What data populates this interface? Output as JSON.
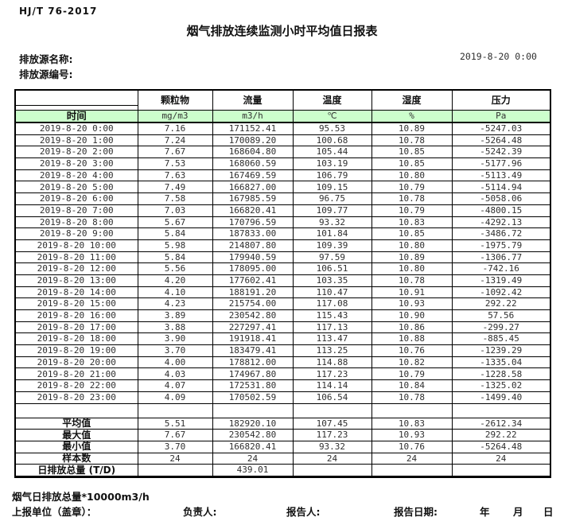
{
  "page": {
    "standard": "HJ/T  76-2017",
    "title": "烟气排放连续监测小时平均值日报表",
    "source_name_label": "排放源名称:",
    "source_id_label": "排放源编号:",
    "report_datetime": "2019-8-20 0:00"
  },
  "table": {
    "time_header": "时间",
    "param_headers": [
      "颗粒物",
      "流量",
      "温度",
      "湿度",
      "压力"
    ],
    "unit_headers": [
      "mg/m3",
      "m3/h",
      "℃",
      "%",
      "Pa"
    ],
    "hourly_rows": [
      {
        "time": "2019-8-20 0:00",
        "values": [
          "7.16",
          "171152.41",
          "95.53",
          "10.89",
          "-5247.03"
        ]
      },
      {
        "time": "2019-8-20 1:00",
        "values": [
          "7.24",
          "170089.20",
          "100.68",
          "10.78",
          "-5264.48"
        ]
      },
      {
        "time": "2019-8-20 2:00",
        "values": [
          "7.67",
          "168604.80",
          "105.44",
          "10.85",
          "-5242.39"
        ]
      },
      {
        "time": "2019-8-20 3:00",
        "values": [
          "7.53",
          "168060.59",
          "103.19",
          "10.85",
          "-5177.96"
        ]
      },
      {
        "time": "2019-8-20 4:00",
        "values": [
          "7.63",
          "167469.59",
          "106.79",
          "10.80",
          "-5113.49"
        ]
      },
      {
        "time": "2019-8-20 5:00",
        "values": [
          "7.49",
          "166827.00",
          "109.15",
          "10.79",
          "-5114.94"
        ]
      },
      {
        "time": "2019-8-20 6:00",
        "values": [
          "7.58",
          "167985.59",
          "96.75",
          "10.78",
          "-5058.06"
        ]
      },
      {
        "time": "2019-8-20 7:00",
        "values": [
          "7.03",
          "166820.41",
          "109.77",
          "10.79",
          "-4800.15"
        ]
      },
      {
        "time": "2019-8-20 8:00",
        "values": [
          "5.67",
          "170796.59",
          "93.32",
          "10.83",
          "-4292.13"
        ]
      },
      {
        "time": "2019-8-20 9:00",
        "values": [
          "5.84",
          "187833.00",
          "101.84",
          "10.85",
          "-3486.72"
        ]
      },
      {
        "time": "2019-8-20 10:00",
        "values": [
          "5.98",
          "214807.80",
          "109.39",
          "10.80",
          "-1975.79"
        ]
      },
      {
        "time": "2019-8-20 11:00",
        "values": [
          "5.84",
          "179940.59",
          "97.59",
          "10.89",
          "-1306.77"
        ]
      },
      {
        "time": "2019-8-20 12:00",
        "values": [
          "5.56",
          "178095.00",
          "106.51",
          "10.80",
          "-742.16"
        ]
      },
      {
        "time": "2019-8-20 13:00",
        "values": [
          "4.20",
          "177602.41",
          "103.35",
          "10.78",
          "-1319.49"
        ]
      },
      {
        "time": "2019-8-20 14:00",
        "values": [
          "4.10",
          "188191.20",
          "110.47",
          "10.91",
          "-1092.42"
        ]
      },
      {
        "time": "2019-8-20 15:00",
        "values": [
          "4.23",
          "215754.00",
          "117.08",
          "10.93",
          "292.22"
        ]
      },
      {
        "time": "2019-8-20 16:00",
        "values": [
          "3.89",
          "230542.80",
          "115.43",
          "10.90",
          "57.56"
        ]
      },
      {
        "time": "2019-8-20 17:00",
        "values": [
          "3.88",
          "227297.41",
          "117.13",
          "10.86",
          "-299.27"
        ]
      },
      {
        "time": "2019-8-20 18:00",
        "values": [
          "3.90",
          "191918.41",
          "113.47",
          "10.88",
          "-885.45"
        ]
      },
      {
        "time": "2019-8-20 19:00",
        "values": [
          "3.70",
          "183479.41",
          "113.25",
          "10.76",
          "-1239.29"
        ]
      },
      {
        "time": "2019-8-20 20:00",
        "values": [
          "4.00",
          "178812.00",
          "114.88",
          "10.82",
          "-1335.04"
        ]
      },
      {
        "time": "2019-8-20 21:00",
        "values": [
          "4.03",
          "174967.80",
          "117.23",
          "10.79",
          "-1228.58"
        ]
      },
      {
        "time": "2019-8-20 22:00",
        "values": [
          "4.07",
          "172531.80",
          "114.14",
          "10.84",
          "-1325.02"
        ]
      },
      {
        "time": "2019-8-20 23:00",
        "values": [
          "4.09",
          "170502.59",
          "106.54",
          "10.78",
          "-1499.40"
        ]
      }
    ],
    "summary_rows": [
      {
        "label": "平均值",
        "values": [
          "5.51",
          "182920.10",
          "107.45",
          "10.83",
          "-2612.34"
        ]
      },
      {
        "label": "最大值",
        "values": [
          "7.67",
          "230542.80",
          "117.23",
          "10.93",
          "292.22"
        ]
      },
      {
        "label": "最小值",
        "values": [
          "3.70",
          "166820.41",
          "93.32",
          "10.76",
          "-5264.48"
        ]
      },
      {
        "label": "样本数",
        "values": [
          "24",
          "24",
          "24",
          "24",
          "24"
        ]
      },
      {
        "label": "日排放总量 (T/D)",
        "values": [
          "",
          "439.01",
          "",
          "",
          ""
        ]
      }
    ]
  },
  "footer": {
    "note": "烟气日排放总量*10000m3/h",
    "report_unit_label": "上报单位（盖章）：",
    "responsible_label": "负责人:",
    "reporter_label": "报告人:",
    "report_date_label": "报告日期:",
    "year_label": "年",
    "month_label": "月",
    "day_label": "日"
  },
  "colors": {
    "header_row_green": "#ccffcc",
    "border": "#000000",
    "text": "#2f2f2f"
  }
}
